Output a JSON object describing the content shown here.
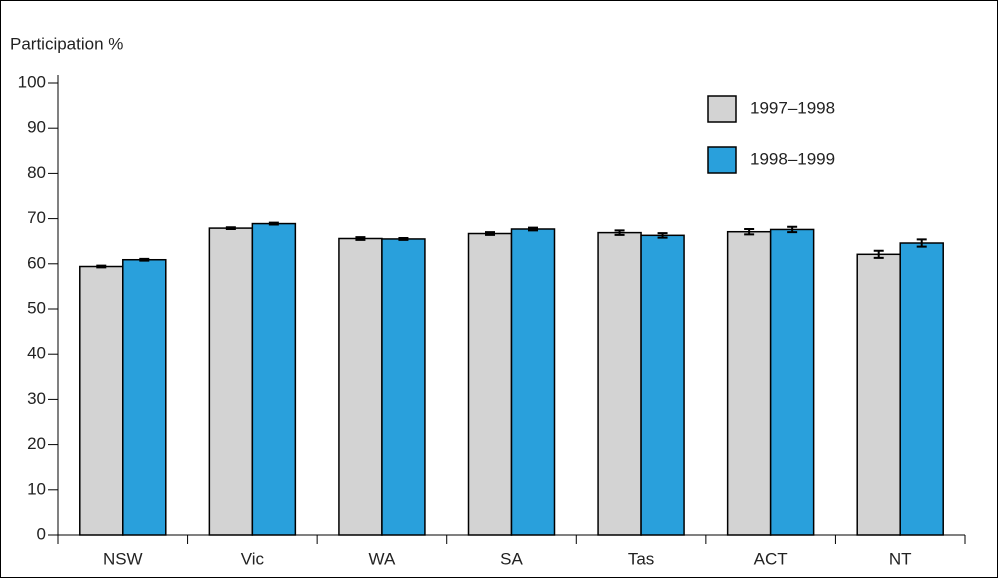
{
  "chart_data": {
    "type": "bar",
    "y_label": "Participation %",
    "categories": [
      "NSW",
      "Vic",
      "WA",
      "SA",
      "Tas",
      "ACT",
      "NT"
    ],
    "series": [
      {
        "name": "1997–1998",
        "color": "#d3d3d3",
        "values": [
          59.4,
          67.9,
          65.6,
          66.7,
          66.9,
          67.1,
          62.1
        ],
        "errors": [
          0.2,
          0.2,
          0.3,
          0.3,
          0.5,
          0.6,
          0.8
        ]
      },
      {
        "name": "1998–1999",
        "color": "#29a0dc",
        "values": [
          60.9,
          68.9,
          65.5,
          67.7,
          66.3,
          67.6,
          64.6
        ],
        "errors": [
          0.2,
          0.2,
          0.2,
          0.3,
          0.5,
          0.6,
          0.8
        ]
      }
    ],
    "ylim": [
      0,
      100
    ],
    "yticks": [
      0,
      10,
      20,
      30,
      40,
      50,
      60,
      70,
      80,
      90,
      100
    ],
    "legend": "top-right"
  }
}
